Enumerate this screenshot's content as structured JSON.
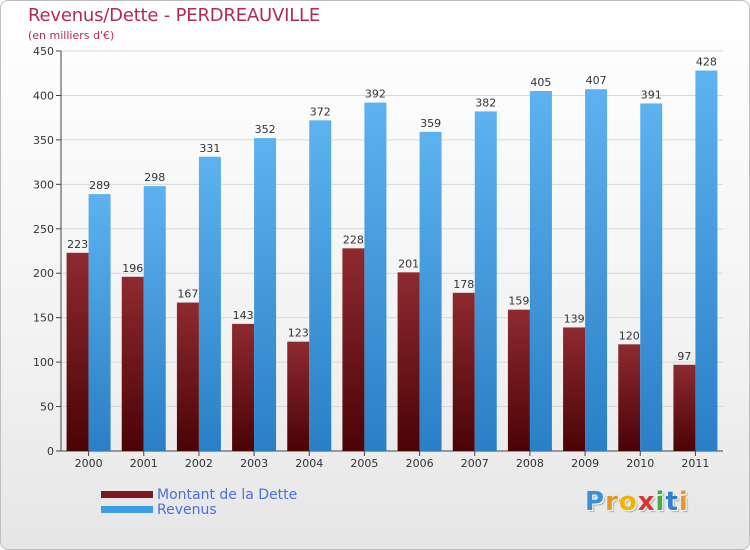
{
  "header": {
    "title": "Revenus/Dette - PERDREAUVILLE",
    "subtitle": "(en milliers d'€)"
  },
  "colors": {
    "dette": "#7a1a22",
    "revenus": "#3d9ee6",
    "title": "#b22a5a"
  },
  "logo": {
    "letters": [
      "P",
      "r",
      "o",
      "x",
      "i",
      "t",
      "i"
    ]
  },
  "chart_data": {
    "type": "bar",
    "title": "Revenus/Dette - PERDREAUVILLE",
    "ylabel": "(en milliers d'€)",
    "xlabel": "",
    "categories": [
      "2000",
      "2001",
      "2002",
      "2003",
      "2004",
      "2005",
      "2006",
      "2007",
      "2008",
      "2009",
      "2010",
      "2011"
    ],
    "series": [
      {
        "name": "Montant de la Dette",
        "values": [
          223,
          196,
          167,
          143,
          123,
          228,
          201,
          178,
          159,
          139,
          120,
          97
        ]
      },
      {
        "name": "Revenus",
        "values": [
          289,
          298,
          331,
          352,
          372,
          392,
          359,
          382,
          405,
          407,
          391,
          428
        ]
      }
    ],
    "ylim": [
      0,
      450
    ],
    "yticks": [
      0,
      50,
      100,
      150,
      200,
      250,
      300,
      350,
      400,
      450
    ],
    "grid": true,
    "legend": "bottom-left"
  }
}
